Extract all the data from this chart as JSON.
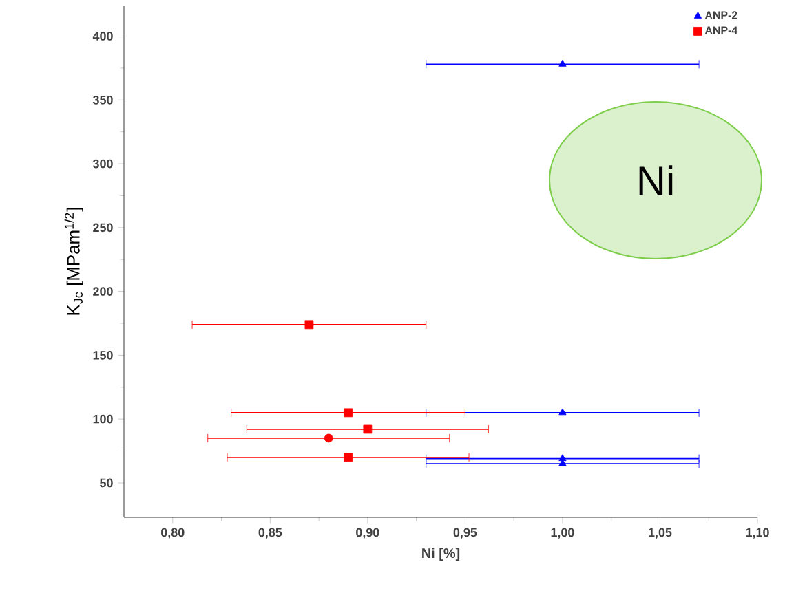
{
  "chart_data": {
    "type": "scatter",
    "xlabel": "Ni [%]",
    "ylabel": "K$_{Jc}$ [MPam$^{1/2}$]",
    "xlim": [
      0.775,
      1.1
    ],
    "ylim": [
      23,
      424
    ],
    "xticks": [
      {
        "value": 0.8,
        "label": "0,80"
      },
      {
        "value": 0.85,
        "label": "0,85"
      },
      {
        "value": 0.9,
        "label": "0,90"
      },
      {
        "value": 0.95,
        "label": "0,95"
      },
      {
        "value": 1.0,
        "label": "1,00"
      },
      {
        "value": 1.05,
        "label": "1,05"
      },
      {
        "value": 1.1,
        "label": "1,10"
      }
    ],
    "yticks": [
      50,
      100,
      150,
      200,
      250,
      300,
      350,
      400
    ],
    "grid": false,
    "legend": "top right",
    "annotations": [
      "Ni"
    ],
    "series": [
      {
        "name": "ANP-2",
        "color": "#0000ff",
        "marker": "triangle",
        "x": [
          1.0,
          1.0,
          1.0,
          1.0
        ],
        "values": [
          378,
          105,
          69,
          65
        ],
        "xerrors": [
          0.07,
          0.07,
          0.07,
          0.07
        ]
      },
      {
        "name": "ANP-4",
        "color": "#ff0000",
        "marker": "square",
        "x": [
          0.87,
          0.89,
          0.9,
          0.89
        ],
        "values": [
          174,
          105,
          92,
          70
        ],
        "xerrors": [
          0.06,
          0.06,
          0.062,
          0.062
        ]
      },
      {
        "color": "#ff0000",
        "marker": "circle",
        "x": [
          0.88
        ],
        "values": [
          85
        ],
        "xerrors": [
          0.062
        ]
      }
    ]
  }
}
